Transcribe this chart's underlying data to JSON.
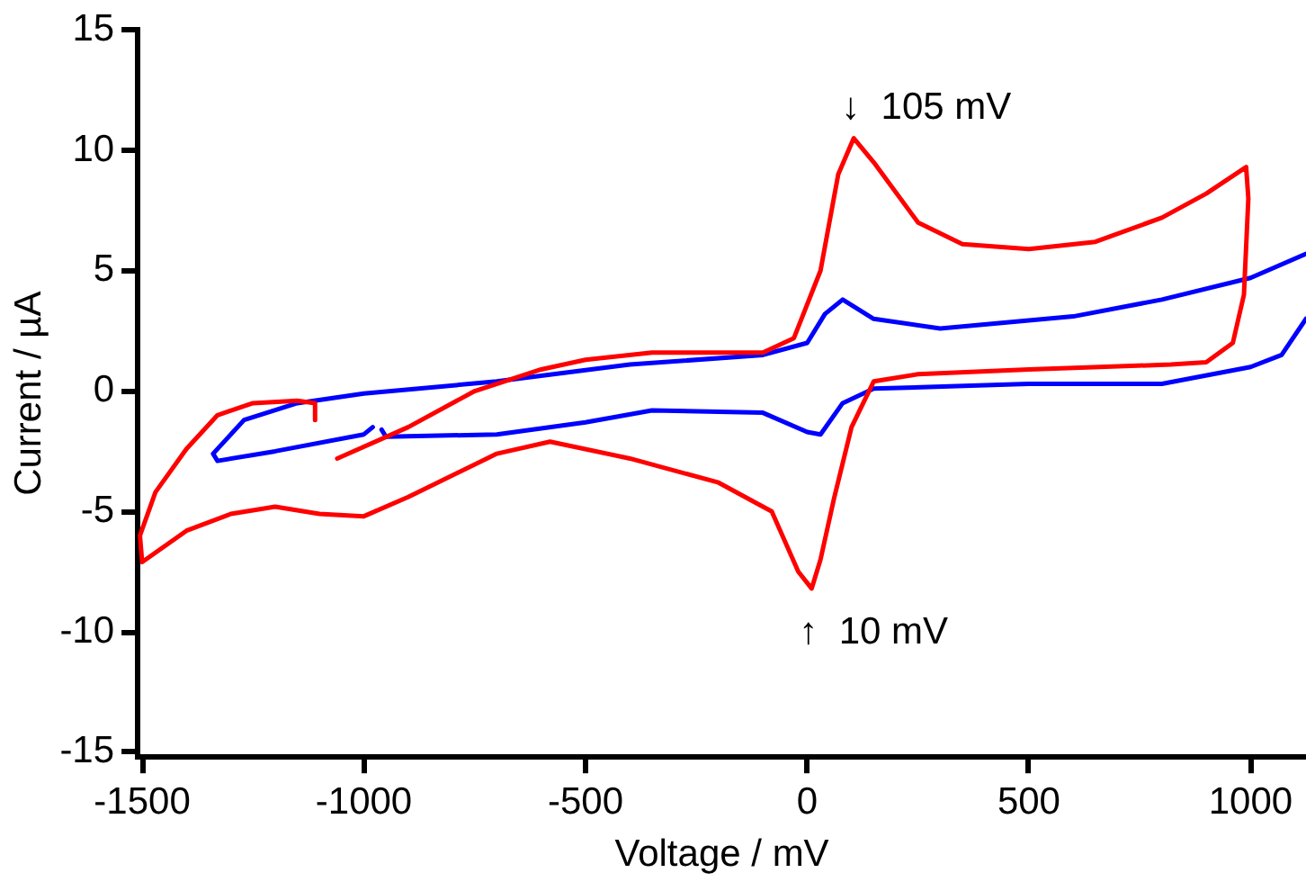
{
  "chart_data": {
    "type": "line",
    "xlabel": "Voltage / mV",
    "ylabel": "Current / µA",
    "xlim": [
      -1510,
      1125
    ],
    "ylim": [
      -15.2,
      15
    ],
    "xticks": [
      -1500,
      -1000,
      -500,
      0,
      500,
      1000
    ],
    "yticks": [
      -15,
      -10,
      -5,
      0,
      5,
      10,
      15
    ],
    "grid": false,
    "legend": false,
    "marker": "none",
    "line_style": "solid",
    "annotations": [
      {
        "text": "↓  105 mV",
        "x": 105,
        "y": 10.5
      },
      {
        "text": "↑  10 mV",
        "x": 10,
        "y": -8.2
      }
    ],
    "series": [
      {
        "color": "#ff0000",
        "x": [
          -1060,
          -900,
          -750,
          -600,
          -500,
          -350,
          -200,
          -100,
          -30,
          30,
          70,
          105,
          150,
          250,
          350,
          500,
          650,
          800,
          900,
          990,
          995,
          985,
          960,
          900,
          820,
          500,
          250,
          150,
          100,
          60,
          30,
          10,
          -20,
          -80,
          -200,
          -400,
          -580,
          -700,
          -900,
          -1000,
          -1100,
          -1200,
          -1300,
          -1400,
          -1500,
          -1505,
          -1470,
          -1400,
          -1330,
          -1250,
          -1150,
          -1110,
          -1110
        ],
        "values": [
          -2.8,
          -1.5,
          0,
          0.9,
          1.3,
          1.6,
          1.6,
          1.6,
          2.2,
          5,
          9,
          10.5,
          9.5,
          7,
          6.1,
          5.9,
          6.2,
          7.2,
          8.2,
          9.3,
          8,
          4,
          2,
          1.2,
          1.1,
          0.9,
          0.7,
          0.4,
          -1.5,
          -4.5,
          -7,
          -8.2,
          -7.5,
          -5,
          -3.8,
          -2.8,
          -2.1,
          -2.6,
          -4.4,
          -5.2,
          -5.1,
          -4.8,
          -5.1,
          -5.8,
          -7.1,
          -6,
          -4.2,
          -2.4,
          -1,
          -0.5,
          -0.4,
          -0.5,
          -1.2
        ]
      },
      {
        "color": "#0000ff",
        "x": [
          -960,
          -950,
          -700,
          -500,
          -350,
          -100,
          0,
          30,
          80,
          150,
          500,
          800,
          1000,
          1070,
          1125,
          null,
          1125,
          1000,
          800,
          600,
          300,
          150,
          80,
          40,
          0,
          -100,
          -400,
          -700,
          -1000,
          -1150,
          -1270,
          -1340,
          -1330,
          -1200,
          -1000,
          -980
        ],
        "values": [
          -1.6,
          -1.9,
          -1.8,
          -1.3,
          -0.8,
          -0.9,
          -1.7,
          -1.8,
          -0.5,
          0.1,
          0.3,
          0.3,
          1,
          1.5,
          3,
          null,
          5.7,
          4.7,
          3.8,
          3.1,
          2.6,
          3,
          3.8,
          3.2,
          2,
          1.5,
          1.1,
          0.4,
          -0.1,
          -0.5,
          -1.2,
          -2.6,
          -2.9,
          -2.5,
          -1.8,
          -1.5
        ]
      }
    ]
  }
}
